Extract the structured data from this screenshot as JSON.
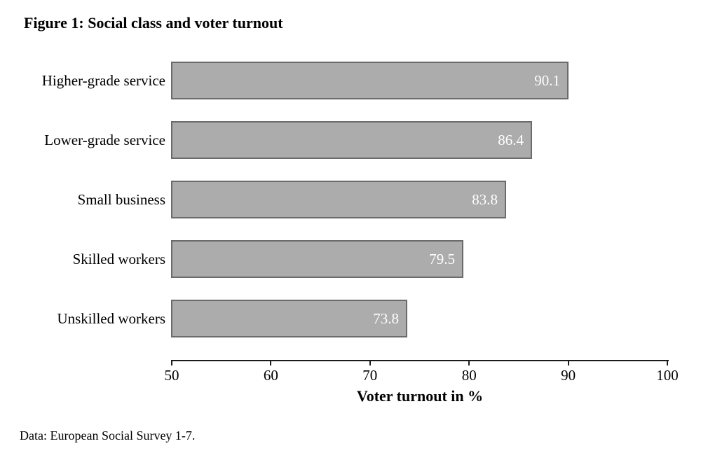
{
  "figure": {
    "title": "Figure 1: Social class and voter turnout",
    "footnote": "Data: European Social Survey 1-7."
  },
  "chart_data": {
    "type": "bar",
    "orientation": "horizontal",
    "title": "Figure 1: Social class and voter turnout",
    "categories": [
      "Higher-grade service",
      "Lower-grade service",
      "Small business",
      "Skilled workers",
      "Unskilled workers"
    ],
    "values": [
      90.1,
      86.4,
      83.8,
      79.5,
      73.8
    ],
    "value_labels": [
      "90.1",
      "86.4",
      "83.8",
      "79.5",
      "73.8"
    ],
    "xlabel": "Voter turnout in %",
    "ylabel": "",
    "xlim": [
      50,
      100
    ],
    "xticks": [
      "50",
      "60",
      "70",
      "80",
      "90",
      "100"
    ],
    "grid": false,
    "legend": false,
    "colors": {
      "bar_fill": "#acacac",
      "bar_border": "#6b6b6b",
      "value_label": "#ffffff",
      "axis_line": "#1a1a1a",
      "text": "#000000"
    }
  }
}
